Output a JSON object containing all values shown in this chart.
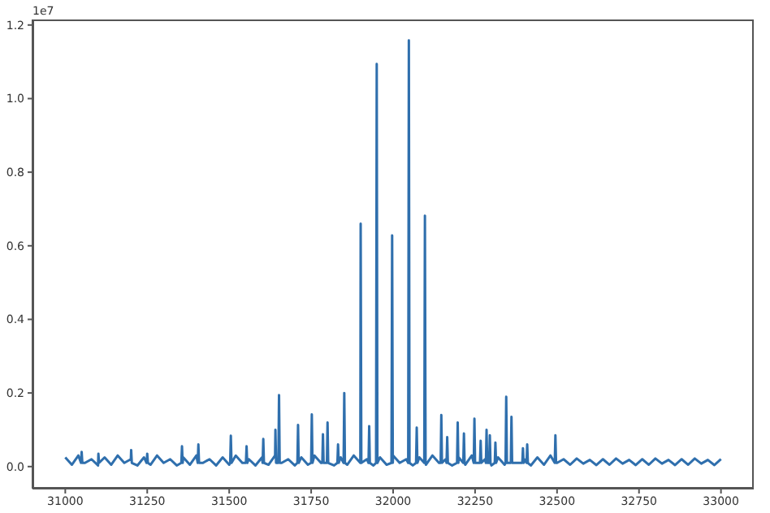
{
  "chart_data": {
    "type": "line",
    "annotations": [
      "1e7"
    ],
    "color": "#2f6fad",
    "xlim": [
      30900,
      33100
    ],
    "ylim": [
      -0.06,
      1.215
    ],
    "xticks": [
      31000,
      31250,
      31500,
      31750,
      32000,
      32250,
      32500,
      32750,
      33000
    ],
    "yticks": [
      {
        "value": 0,
        "label": "0.0"
      },
      0.2,
      0.4,
      0.6,
      0.8,
      {
        "value": 1,
        "label": "1.0"
      },
      1.2
    ],
    "x": [
      31000,
      31020,
      31040,
      31048,
      31050,
      31052,
      31060,
      31080,
      31100,
      31101,
      31103,
      31120,
      31140,
      31160,
      31180,
      31200,
      31201,
      31203,
      31220,
      31240,
      31248,
      31250,
      31252,
      31260,
      31280,
      31300,
      31320,
      31340,
      31354,
      31356,
      31358,
      31360,
      31380,
      31400,
      31404,
      31406,
      31408,
      31420,
      31440,
      31460,
      31480,
      31500,
      31503,
      31505,
      31507,
      31520,
      31540,
      31551,
      31553,
      31555,
      31560,
      31580,
      31600,
      31602,
      31604,
      31606,
      31620,
      31640,
      31641,
      31643,
      31650,
      31652,
      31654,
      31660,
      31680,
      31700,
      31708,
      31710,
      31712,
      31720,
      31740,
      31750,
      31752,
      31754,
      31760,
      31780,
      31784,
      31786,
      31788,
      31798,
      31800,
      31802,
      31820,
      31830,
      31832,
      31834,
      31840,
      31849,
      31851,
      31853,
      31860,
      31880,
      31900,
      31901,
      31903,
      31920,
      31925,
      31927,
      31929,
      31940,
      31948,
      31950,
      31952,
      31960,
      31980,
      31995,
      31997,
      31999,
      32000,
      32020,
      32040,
      32046,
      32048,
      32050,
      32060,
      32070,
      32072,
      32074,
      32080,
      32095,
      32097,
      32099,
      32100,
      32120,
      32140,
      32145,
      32147,
      32149,
      32160,
      32163,
      32165,
      32167,
      32180,
      32195,
      32197,
      32199,
      32200,
      32214,
      32216,
      32218,
      32220,
      32240,
      32246,
      32248,
      32250,
      32260,
      32265,
      32267,
      32269,
      32280,
      32283,
      32285,
      32287,
      32293,
      32295,
      32297,
      32300,
      32310,
      32312,
      32314,
      32320,
      32340,
      32343,
      32345,
      32347,
      32359,
      32361,
      32363,
      32380,
      32394,
      32396,
      32398,
      32400,
      32407,
      32409,
      32411,
      32420,
      32440,
      32460,
      32480,
      32493,
      32495,
      32497,
      32500,
      32520,
      32540,
      32560,
      32580,
      32600,
      32620,
      32640,
      32660,
      32680,
      32700,
      32720,
      32740,
      32760,
      32780,
      32800,
      32820,
      32840,
      32860,
      32880,
      32900,
      32920,
      32940,
      32960,
      32980,
      33000
    ],
    "values": [
      0.025,
      0.005,
      0.03,
      0.01,
      0.04,
      0.01,
      0.01,
      0.02,
      0.003,
      0.035,
      0.01,
      0.025,
      0.005,
      0.03,
      0.01,
      0.02,
      0.045,
      0.01,
      0.003,
      0.025,
      0.01,
      0.035,
      0.01,
      0.005,
      0.03,
      0.01,
      0.02,
      0.003,
      0.01,
      0.055,
      0.01,
      0.025,
      0.005,
      0.03,
      0.01,
      0.06,
      0.01,
      0.01,
      0.02,
      0.003,
      0.025,
      0.005,
      0.01,
      0.084,
      0.01,
      0.03,
      0.01,
      0.01,
      0.055,
      0.01,
      0.02,
      0.003,
      0.025,
      0.01,
      0.075,
      0.01,
      0.005,
      0.03,
      0.1,
      0.01,
      0.01,
      0.194,
      0.01,
      0.01,
      0.02,
      0.003,
      0.01,
      0.113,
      0.01,
      0.025,
      0.005,
      0.01,
      0.142,
      0.01,
      0.03,
      0.01,
      0.01,
      0.088,
      0.01,
      0.01,
      0.12,
      0.01,
      0.003,
      0.01,
      0.06,
      0.01,
      0.025,
      0.01,
      0.2,
      0.01,
      0.005,
      0.03,
      0.01,
      0.66,
      0.01,
      0.02,
      0.01,
      0.11,
      0.01,
      0.003,
      0.01,
      1.094,
      0.01,
      0.025,
      0.005,
      0.01,
      0.628,
      0.01,
      0.03,
      0.01,
      0.02,
      0.01,
      1.158,
      0.01,
      0.003,
      0.01,
      0.106,
      0.01,
      0.025,
      0.01,
      0.682,
      0.01,
      0.005,
      0.03,
      0.01,
      0.01,
      0.14,
      0.01,
      0.02,
      0.01,
      0.08,
      0.01,
      0.003,
      0.01,
      0.12,
      0.01,
      0.025,
      0.01,
      0.09,
      0.01,
      0.005,
      0.03,
      0.01,
      0.13,
      0.01,
      0.01,
      0.01,
      0.07,
      0.01,
      0.02,
      0.01,
      0.1,
      0.01,
      0.01,
      0.085,
      0.01,
      0.003,
      0.01,
      0.065,
      0.01,
      0.025,
      0.005,
      0.01,
      0.19,
      0.01,
      0.01,
      0.135,
      0.01,
      0.01,
      0.01,
      0.05,
      0.01,
      0.02,
      0.01,
      0.06,
      0.01,
      0.003,
      0.025,
      0.005,
      0.03,
      0.01,
      0.085,
      0.01,
      0.01,
      0.02,
      0.005,
      0.022,
      0.008,
      0.018,
      0.004,
      0.02,
      0.005,
      0.022,
      0.008,
      0.018,
      0.004,
      0.02,
      0.005,
      0.022,
      0.008,
      0.018,
      0.004,
      0.02,
      0.005,
      0.022,
      0.008,
      0.018,
      0.004,
      0.02
    ]
  }
}
